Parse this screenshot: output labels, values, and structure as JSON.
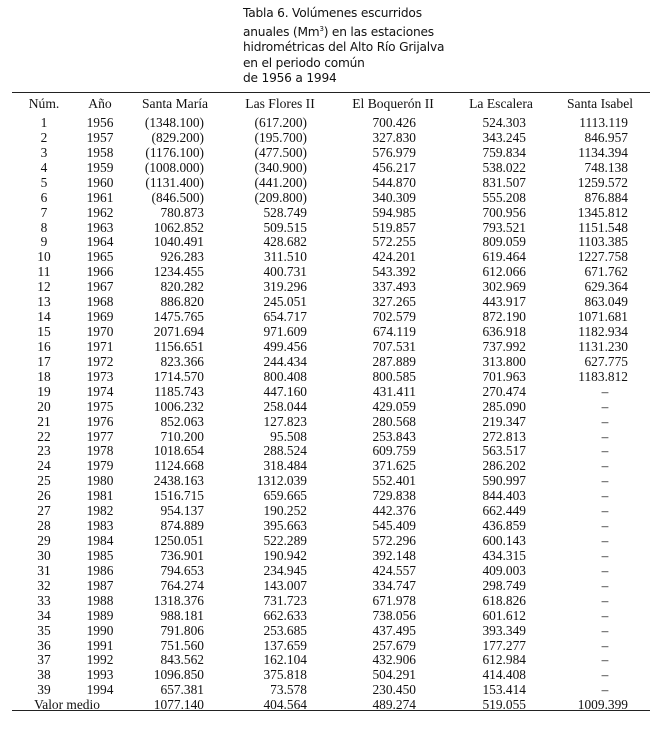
{
  "caption": {
    "lines": [
      "Tabla 6. Volúmenes escurridos",
      "anuales (Mm",
      ") en las estaciones",
      "hidrométricas del Alto Río Grijalva",
      "en el periodo común",
      "de 1956 a 1994"
    ],
    "superscript": "3"
  },
  "table": {
    "headers": [
      "Núm.",
      "Año",
      "Santa María",
      "Las Flores II",
      "El Boquerón II",
      "La Escalera",
      "Santa Isabel"
    ],
    "rows": [
      [
        "1",
        "1956",
        "(1348.100)",
        "(617.200)",
        "700.426",
        "524.303",
        "1113.119"
      ],
      [
        "2",
        "1957",
        "(829.200)",
        "(195.700)",
        "327.830",
        "343.245",
        "846.957"
      ],
      [
        "3",
        "1958",
        "(1176.100)",
        "(477.500)",
        "576.979",
        "759.834",
        "1134.394"
      ],
      [
        "4",
        "1959",
        "(1008.000)",
        "(340.900)",
        "456.217",
        "538.022",
        "748.138"
      ],
      [
        "5",
        "1960",
        "(1131.400)",
        "(441.200)",
        "544.870",
        "831.507",
        "1259.572"
      ],
      [
        "6",
        "1961",
        "(846.500)",
        "(209.800)",
        "340.309",
        "555.208",
        "876.884"
      ],
      [
        "7",
        "1962",
        "780.873",
        "528.749",
        "594.985",
        "700.956",
        "1345.812"
      ],
      [
        "8",
        "1963",
        "1062.852",
        "509.515",
        "519.857",
        "793.521",
        "1151.548"
      ],
      [
        "9",
        "1964",
        "1040.491",
        "428.682",
        "572.255",
        "809.059",
        "1103.385"
      ],
      [
        "10",
        "1965",
        "926.283",
        "311.510",
        "424.201",
        "619.464",
        "1227.758"
      ],
      [
        "11",
        "1966",
        "1234.455",
        "400.731",
        "543.392",
        "612.066",
        "671.762"
      ],
      [
        "12",
        "1967",
        "820.282",
        "319.296",
        "337.493",
        "302.969",
        "629.364"
      ],
      [
        "13",
        "1968",
        "886.820",
        "245.051",
        "327.265",
        "443.917",
        "863.049"
      ],
      [
        "14",
        "1969",
        "1475.765",
        "654.717",
        "702.579",
        "872.190",
        "1071.681"
      ],
      [
        "15",
        "1970",
        "2071.694",
        "971.609",
        "674.119",
        "636.918",
        "1182.934"
      ],
      [
        "16",
        "1971",
        "1156.651",
        "499.456",
        "707.531",
        "737.992",
        "1131.230"
      ],
      [
        "17",
        "1972",
        "823.366",
        "244.434",
        "287.889",
        "313.800",
        "627.775"
      ],
      [
        "18",
        "1973",
        "1714.570",
        "800.408",
        "800.585",
        "701.963",
        "1183.812"
      ],
      [
        "19",
        "1974",
        "1185.743",
        "447.160",
        "431.411",
        "270.474",
        "–"
      ],
      [
        "20",
        "1975",
        "1006.232",
        "258.044",
        "429.059",
        "285.090",
        "–"
      ],
      [
        "21",
        "1976",
        "852.063",
        "127.823",
        "280.568",
        "219.347",
        "–"
      ],
      [
        "22",
        "1977",
        "710.200",
        "95.508",
        "253.843",
        "272.813",
        "–"
      ],
      [
        "23",
        "1978",
        "1018.654",
        "288.524",
        "609.759",
        "563.517",
        "–"
      ],
      [
        "24",
        "1979",
        "1124.668",
        "318.484",
        "371.625",
        "286.202",
        "–"
      ],
      [
        "25",
        "1980",
        "2438.163",
        "1312.039",
        "552.401",
        "590.997",
        "–"
      ],
      [
        "26",
        "1981",
        "1516.715",
        "659.665",
        "729.838",
        "844.403",
        "–"
      ],
      [
        "27",
        "1982",
        "954.137",
        "190.252",
        "442.376",
        "662.449",
        "–"
      ],
      [
        "28",
        "1983",
        "874.889",
        "395.663",
        "545.409",
        "436.859",
        "–"
      ],
      [
        "29",
        "1984",
        "1250.051",
        "522.289",
        "572.296",
        "600.143",
        "–"
      ],
      [
        "30",
        "1985",
        "736.901",
        "190.942",
        "392.148",
        "434.315",
        "–"
      ],
      [
        "31",
        "1986",
        "794.653",
        "234.945",
        "424.557",
        "409.003",
        "–"
      ],
      [
        "32",
        "1987",
        "764.274",
        "143.007",
        "334.747",
        "298.749",
        "–"
      ],
      [
        "33",
        "1988",
        "1318.376",
        "731.723",
        "671.978",
        "618.826",
        "–"
      ],
      [
        "34",
        "1989",
        "988.181",
        "662.633",
        "738.056",
        "601.612",
        "–"
      ],
      [
        "35",
        "1990",
        "791.806",
        "253.685",
        "437.495",
        "393.349",
        "–"
      ],
      [
        "36",
        "1991",
        "751.560",
        "137.659",
        "257.679",
        "177.277",
        "–"
      ],
      [
        "37",
        "1992",
        "843.562",
        "162.104",
        "432.906",
        "612.984",
        "–"
      ],
      [
        "38",
        "1993",
        "1096.850",
        "375.818",
        "504.291",
        "414.408",
        "–"
      ],
      [
        "39",
        "1994",
        "657.381",
        "73.578",
        "230.450",
        "153.414",
        "–"
      ]
    ],
    "footer": {
      "label": "Valor medio",
      "values": [
        "1077.140",
        "404.564",
        "489.274",
        "519.055",
        "1009.399"
      ]
    }
  }
}
